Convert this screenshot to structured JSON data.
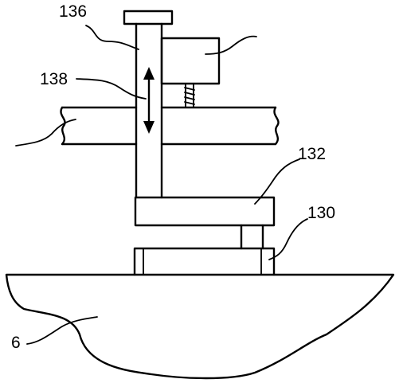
{
  "figure": {
    "labels": {
      "post": "136",
      "arrow": "138",
      "bracket": "132",
      "block": "130",
      "base": "6"
    }
  }
}
